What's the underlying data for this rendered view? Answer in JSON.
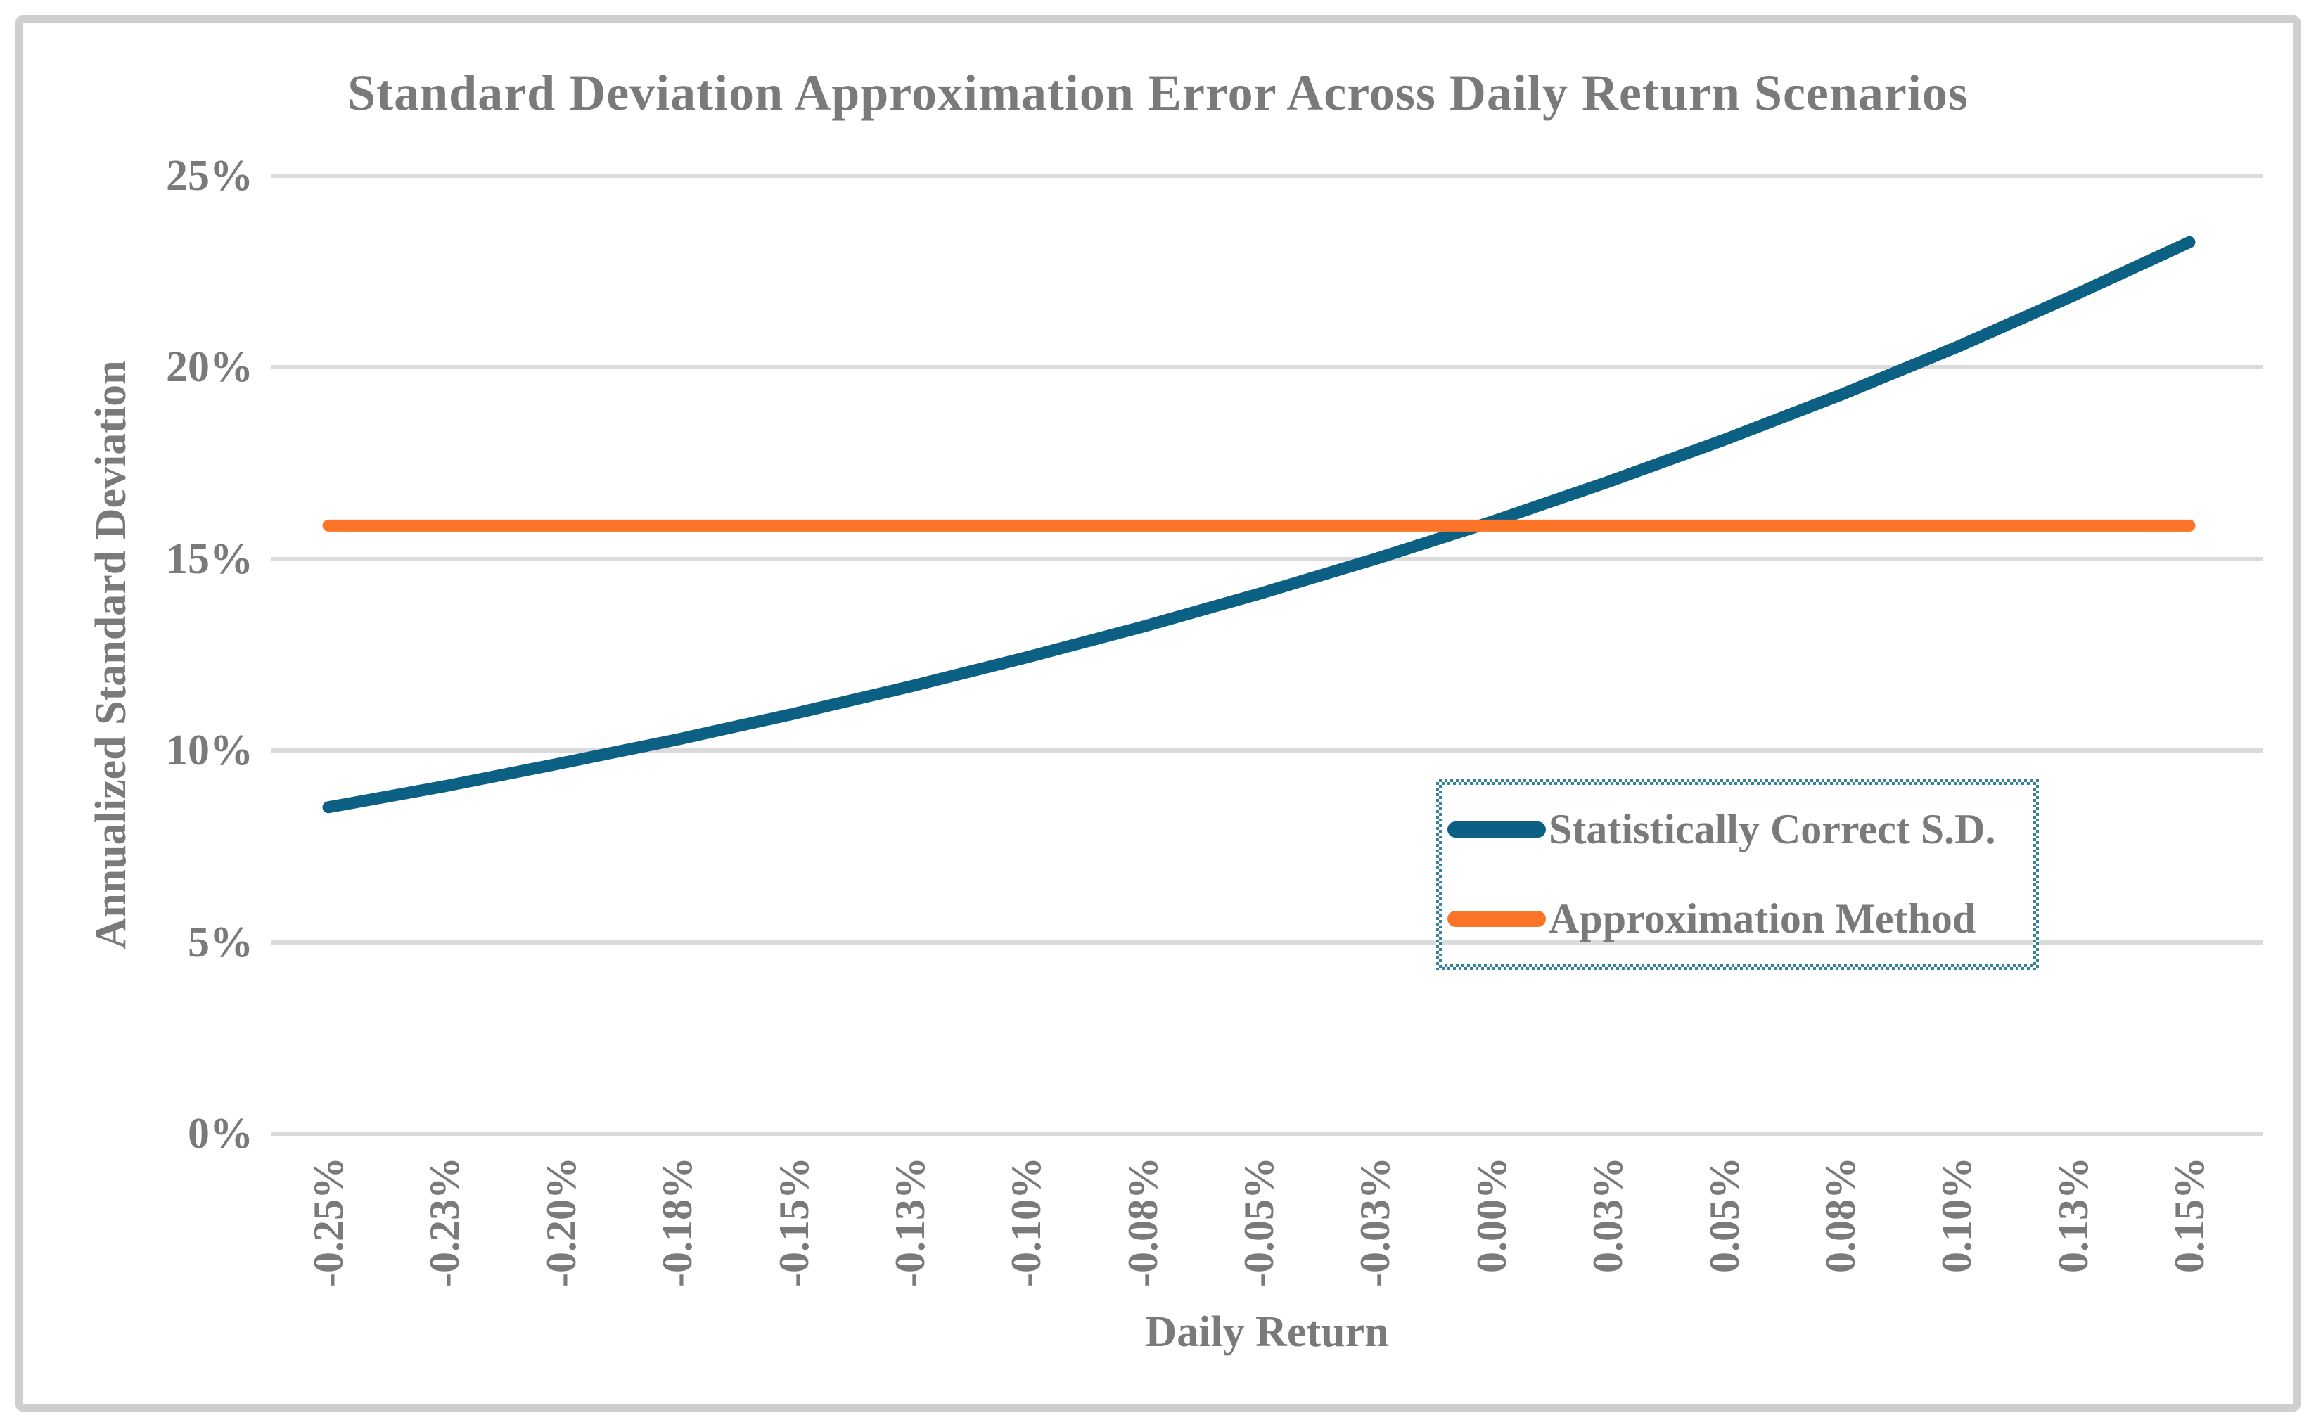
{
  "chart_data": {
    "type": "line",
    "title": "Standard Deviation Approximation Error Across Daily Return Scenarios",
    "xlabel": "Daily Return",
    "ylabel": "Annualized Standard Deviation",
    "x_tick_labels": [
      "-0.25%",
      "-0.23%",
      "-0.20%",
      "-0.18%",
      "-0.15%",
      "-0.13%",
      "-0.10%",
      "-0.08%",
      "-0.05%",
      "-0.03%",
      "0.00%",
      "0.03%",
      "0.05%",
      "0.08%",
      "0.10%",
      "0.13%",
      "0.15%"
    ],
    "y_tick_labels": [
      "0%",
      "5%",
      "10%",
      "15%",
      "20%",
      "25%"
    ],
    "ylim": [
      0,
      25
    ],
    "grid": "horizontal",
    "gridline_color": "#DBDBDB",
    "text_color": "#7A7A7A",
    "legend": {
      "position": "inside-right",
      "border_style": "checkered",
      "border_color": "#35839B"
    },
    "series": [
      {
        "name": "Statistically Correct S.D.",
        "color": "#0C6083",
        "values": [
          8.52,
          9.07,
          9.67,
          10.29,
          10.96,
          11.67,
          12.43,
          13.23,
          14.09,
          15.0,
          15.97,
          17.01,
          18.11,
          19.28,
          20.53,
          21.87,
          23.27
        ]
      },
      {
        "name": "Approximation Method",
        "color": "#FB7428",
        "values": [
          15.87,
          15.87,
          15.87,
          15.87,
          15.87,
          15.87,
          15.87,
          15.87,
          15.87,
          15.87,
          15.87,
          15.87,
          15.87,
          15.87,
          15.87,
          15.87,
          15.87
        ]
      }
    ]
  }
}
